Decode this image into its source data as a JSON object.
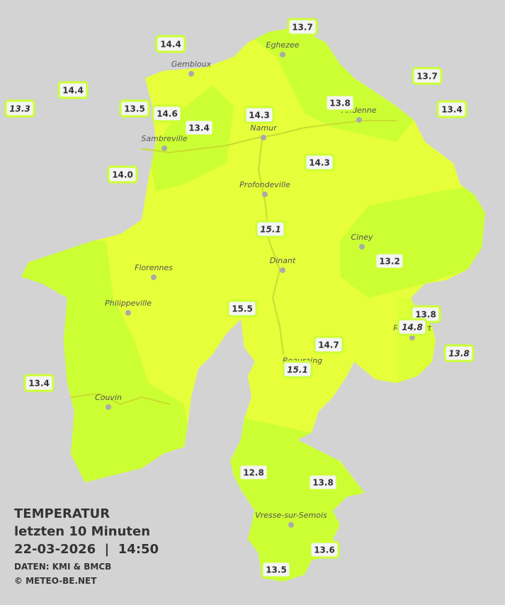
{
  "header": {
    "title": "TEMPERATUR",
    "subtitle": "letzten 10 Minuten",
    "timestamp": "22-03-2026  |  14:50",
    "source": "DATEN: KMI & BMCB",
    "copyright": "© METEO-BE.NET"
  },
  "cities": [
    {
      "name": "Eghezee"
    },
    {
      "name": "Gembloux"
    },
    {
      "name": "Andenne"
    },
    {
      "name": "Namur"
    },
    {
      "name": "Sambreville"
    },
    {
      "name": "Profondeville"
    },
    {
      "name": "Ciney"
    },
    {
      "name": "Dinant"
    },
    {
      "name": "Florennes"
    },
    {
      "name": "Philippeville"
    },
    {
      "name": "Rochefort"
    },
    {
      "name": "Beauraing"
    },
    {
      "name": "Couvin"
    },
    {
      "name": "Vresse-sur-Semois"
    }
  ],
  "stations": [
    {
      "label": "13.7"
    },
    {
      "label": "14.4"
    },
    {
      "label": "13.7"
    },
    {
      "label": "14.4"
    },
    {
      "label": "13.8"
    },
    {
      "label": "13.3"
    },
    {
      "label": "13.5"
    },
    {
      "label": "14.6"
    },
    {
      "label": "14.3"
    },
    {
      "label": "13.4"
    },
    {
      "label": "13.4"
    },
    {
      "label": "14.3"
    },
    {
      "label": "14.0"
    },
    {
      "label": "15.1"
    },
    {
      "label": "13.2"
    },
    {
      "label": "15.5"
    },
    {
      "label": "13.8"
    },
    {
      "label": "14.8"
    },
    {
      "label": "14.7"
    },
    {
      "label": "15.1"
    },
    {
      "label": "13.8"
    },
    {
      "label": "13.4"
    },
    {
      "label": "12.8"
    },
    {
      "label": "13.8"
    },
    {
      "label": "13.6"
    },
    {
      "label": "13.5"
    }
  ]
}
